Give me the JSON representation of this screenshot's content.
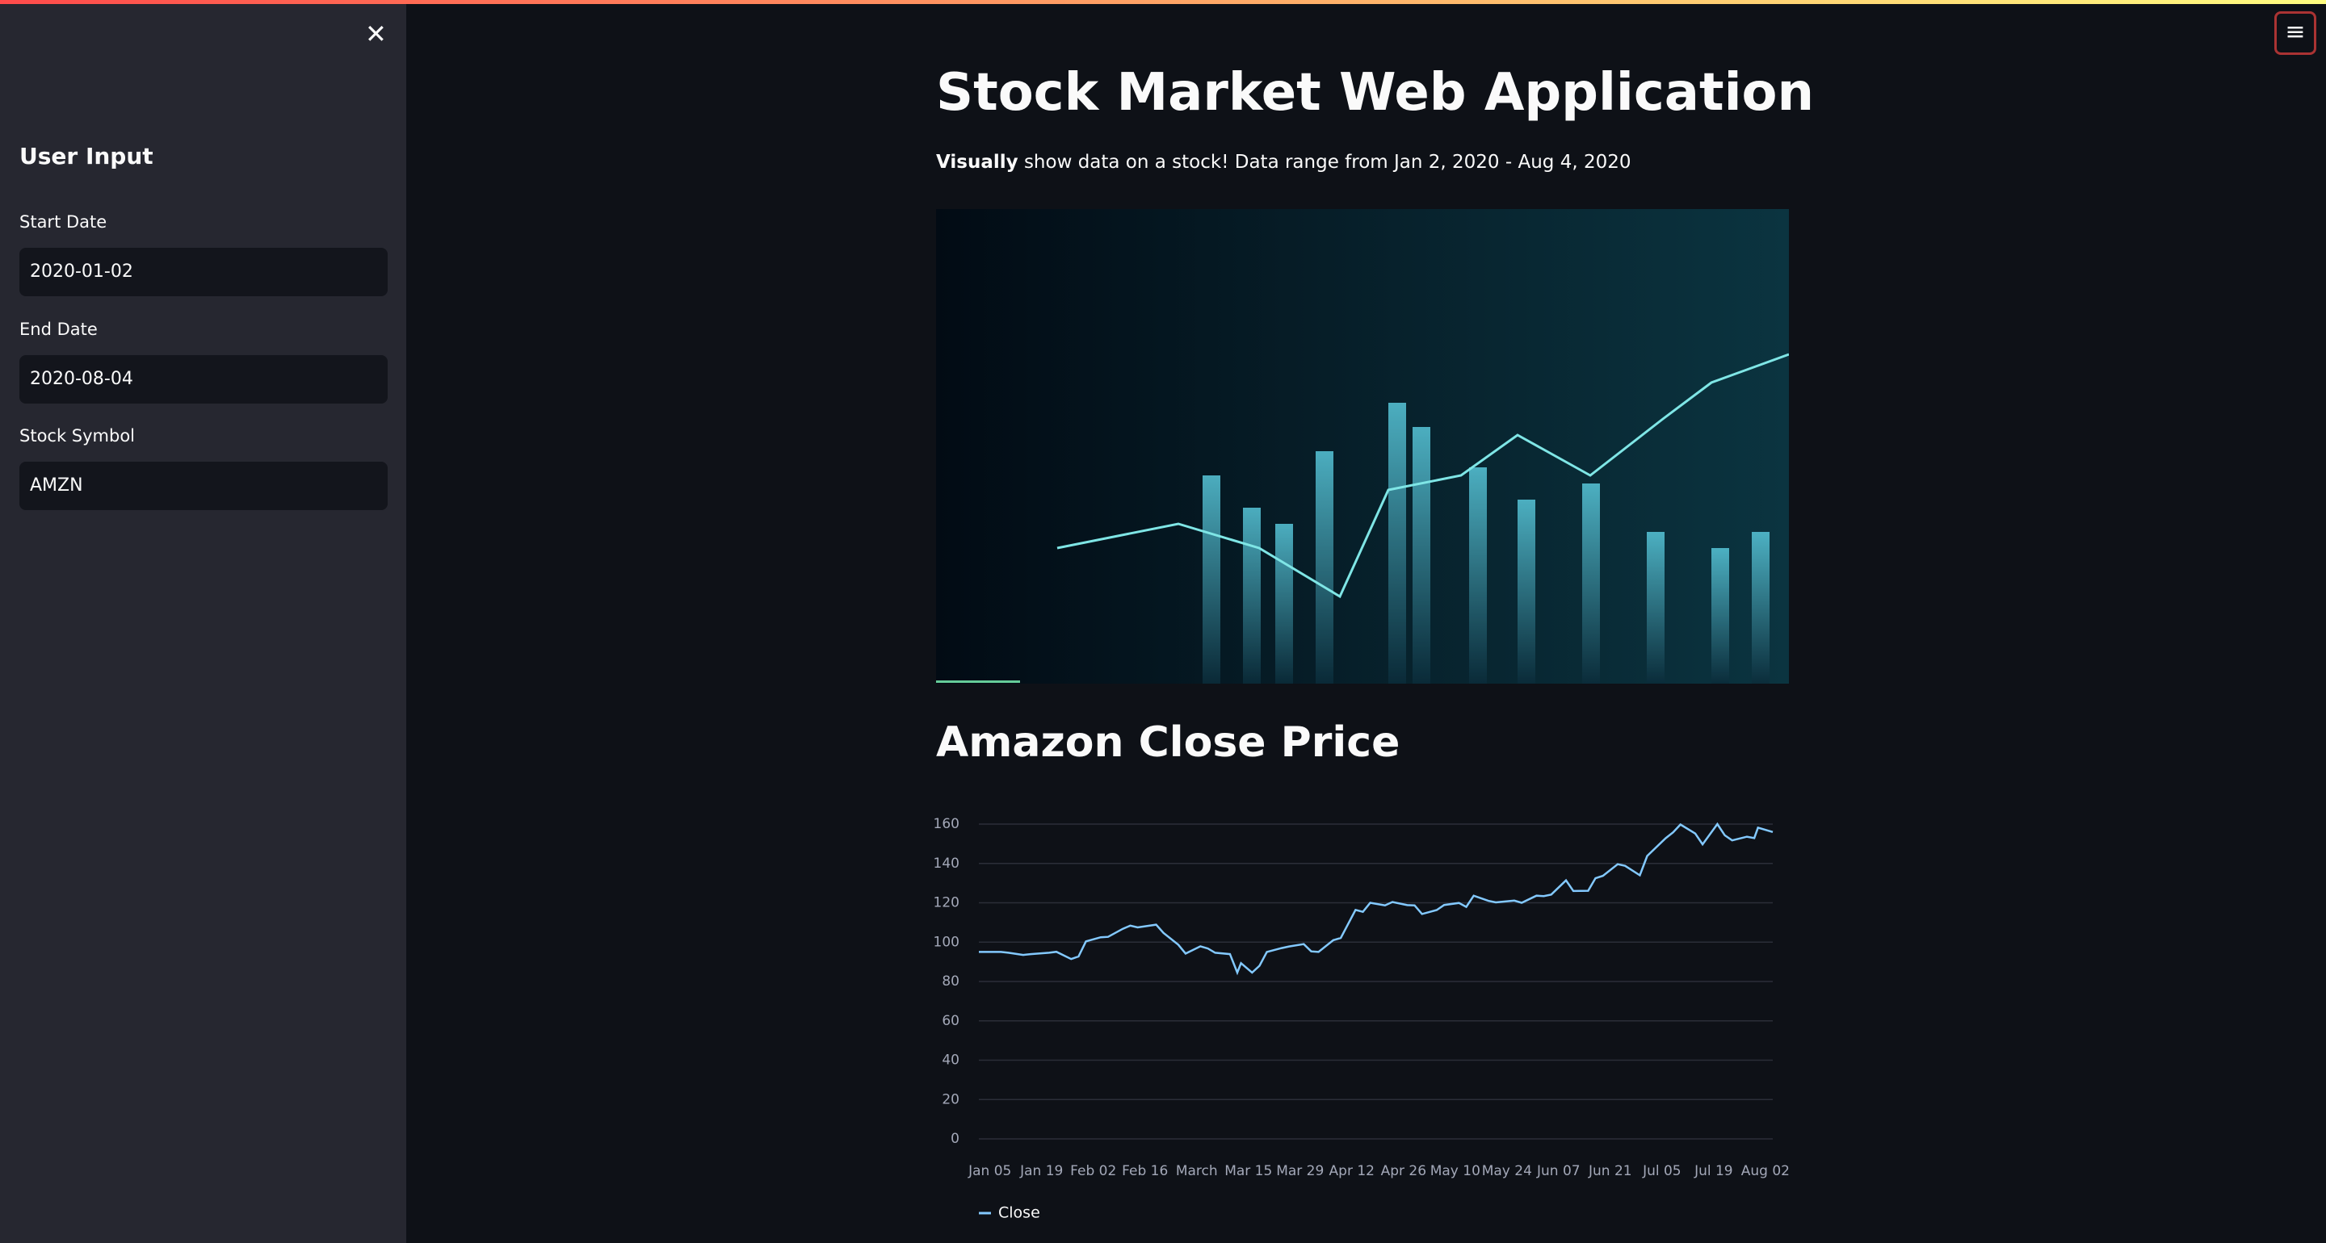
{
  "sidebar": {
    "title": "User Input",
    "fields": [
      {
        "label": "Start Date",
        "value": "2020-01-02"
      },
      {
        "label": "End Date",
        "value": "2020-08-04"
      },
      {
        "label": "Stock Symbol",
        "value": "AMZN"
      }
    ]
  },
  "header": {
    "title": "Stock Market Web Application",
    "subtitle_bold": "Visually",
    "subtitle_rest": "show data on a stock! Data range from Jan 2, 2020 - Aug 4, 2020"
  },
  "chart_data": {
    "type": "line",
    "title": "Amazon Close Price",
    "x": [
      "Jan 02",
      "Jan 06",
      "Jan 08",
      "Jan 10",
      "Jan 14",
      "Jan 16",
      "Jan 21",
      "Jan 23",
      "Jan 27",
      "Jan 29",
      "Jan 31",
      "Feb 04",
      "Feb 06",
      "Feb 10",
      "Feb 12",
      "Feb 14",
      "Feb 19",
      "Feb 21",
      "Feb 25",
      "Feb 27",
      "Mar 02",
      "Mar 04",
      "Mar 06",
      "Mar 10",
      "Mar 12",
      "Mar 13",
      "Mar 16",
      "Mar 18",
      "Mar 20",
      "Mar 24",
      "Mar 26",
      "Mar 30",
      "Apr 01",
      "Apr 03",
      "Apr 07",
      "Apr 09",
      "Apr 13",
      "Apr 15",
      "Apr 17",
      "Apr 21",
      "Apr 23",
      "Apr 27",
      "Apr 29",
      "May 01",
      "May 05",
      "May 07",
      "May 11",
      "May 13",
      "May 15",
      "May 19",
      "May 21",
      "May 26",
      "May 28",
      "Jun 01",
      "Jun 03",
      "Jun 05",
      "Jun 09",
      "Jun 11",
      "Jun 15",
      "Jun 17",
      "Jun 19",
      "Jun 23",
      "Jun 25",
      "Jun 29",
      "Jul 01",
      "Jul 06",
      "Jul 08",
      "Jul 10",
      "Jul 14",
      "Jul 16",
      "Jul 20",
      "Jul 22",
      "Jul 24",
      "Jul 28",
      "Jul 30",
      "Jul 31",
      "Aug 04"
    ],
    "series": [
      {
        "name": "Close",
        "color": "#83c9ff",
        "values": [
          95,
          95,
          95,
          94.6,
          93.5,
          93.9,
          94.6,
          95.1,
          91.4,
          92.7,
          100.4,
          102.5,
          102.7,
          106.8,
          108.4,
          107.5,
          108.9,
          104.7,
          98.7,
          94.2,
          97.9,
          96.8,
          94.6,
          93.9,
          84.5,
          89.3,
          84.5,
          88,
          95,
          97,
          97.8,
          99,
          95.3,
          95,
          101,
          102.1,
          116.4,
          115.4,
          120,
          118.7,
          120.4,
          118.8,
          118.7,
          114.3,
          116.3,
          118.9,
          119.9,
          117.9,
          123.6,
          121,
          120.2,
          121.1,
          120,
          123.6,
          123.4,
          124.2,
          131.4,
          126,
          126.1,
          132.5,
          133.7,
          139.6,
          138.8,
          134,
          143.8,
          152.8,
          155.8,
          159.8,
          155.2,
          149.7,
          160,
          154.3,
          151.7,
          153.6,
          152.9,
          158.2,
          156
        ]
      }
    ],
    "xlim": [
      "Jan 02",
      "Aug 04"
    ],
    "xticks": [
      "Jan 05",
      "Jan 19",
      "Feb 02",
      "Feb 16",
      {
        "value": "Mar 01",
        "label": "March"
      },
      "Mar 15",
      "Mar 29",
      "Apr 12",
      "Apr 26",
      "May 10",
      "May 24",
      "Jun 07",
      "Jun 21",
      "Jul 05",
      "Jul 19",
      "Aug 02"
    ],
    "ylim": [
      0,
      160
    ],
    "yticks": [
      0,
      20,
      40,
      60,
      80,
      100,
      120,
      140,
      160
    ],
    "grid": true
  }
}
